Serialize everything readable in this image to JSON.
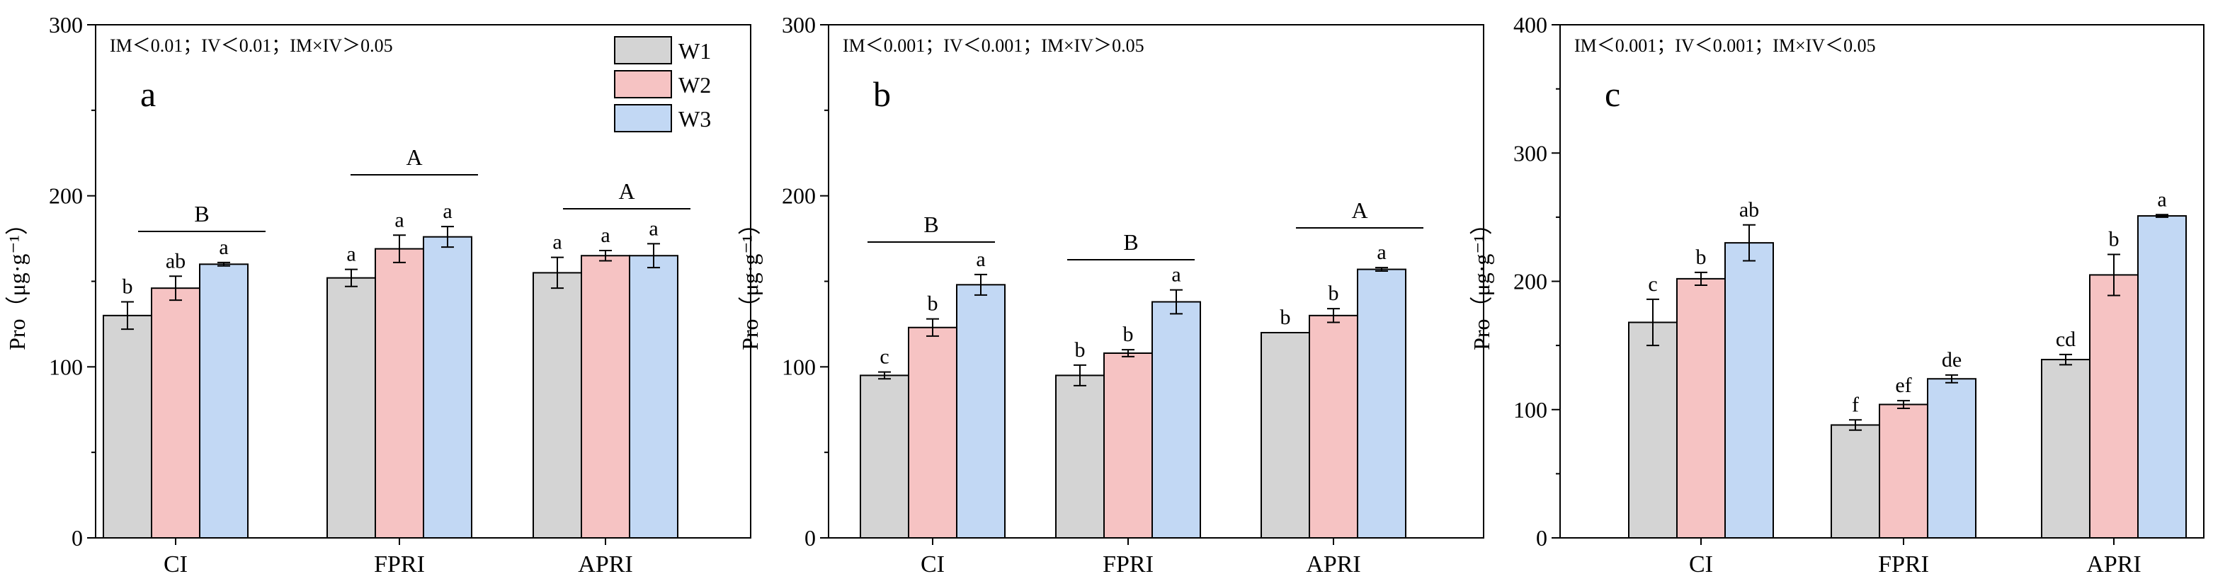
{
  "chart_data": [
    {
      "type": "bar",
      "panel": "a",
      "annotation": "IM＜0.01；IV＜0.01；IM×IV＞0.05",
      "ylabel": "Pro（μg·g⁻¹）",
      "ylim": [
        0,
        300
      ],
      "yticks": [
        "0",
        "100",
        "200",
        "300"
      ],
      "categories": [
        "CI",
        "FPRI",
        "APRI"
      ],
      "series": [
        {
          "name": "W1",
          "values": [
            130,
            152,
            155
          ],
          "errors": [
            8,
            5,
            9
          ],
          "letters": [
            "b",
            "a",
            "a"
          ]
        },
        {
          "name": "W2",
          "values": [
            146,
            169,
            165
          ],
          "errors": [
            7,
            8,
            3
          ],
          "letters": [
            "ab",
            "a",
            "a"
          ]
        },
        {
          "name": "W3",
          "values": [
            160,
            176,
            165
          ],
          "errors": [
            1,
            6,
            7
          ],
          "letters": [
            "a",
            "a",
            "a"
          ]
        }
      ],
      "group_letters": [
        "B",
        "A",
        "A"
      ],
      "legend": [
        "W1",
        "W2",
        "W3"
      ]
    },
    {
      "type": "bar",
      "panel": "b",
      "annotation": "IM＜0.001；IV＜0.001；IM×IV＞0.05",
      "ylabel": "Pro（μg·g⁻¹）",
      "ylim": [
        0,
        300
      ],
      "yticks": [
        "0",
        "100",
        "200",
        "300"
      ],
      "categories": [
        "CI",
        "FPRI",
        "APRI"
      ],
      "series": [
        {
          "name": "W1",
          "values": [
            95,
            95,
            120
          ],
          "errors": [
            2,
            6,
            0
          ],
          "letters": [
            "c",
            "b",
            "b"
          ]
        },
        {
          "name": "W2",
          "values": [
            123,
            108,
            130
          ],
          "errors": [
            5,
            2,
            4
          ],
          "letters": [
            "b",
            "b",
            "b"
          ]
        },
        {
          "name": "W3",
          "values": [
            148,
            138,
            157
          ],
          "errors": [
            6,
            7,
            1
          ],
          "letters": [
            "a",
            "a",
            "a"
          ]
        }
      ],
      "group_letters": [
        "B",
        "B",
        "A"
      ]
    },
    {
      "type": "bar",
      "panel": "c",
      "annotation": "IM＜0.001；IV＜0.001；IM×IV＜0.05",
      "ylabel": "Pro（μg·g⁻¹）",
      "ylim": [
        0,
        400
      ],
      "yticks": [
        "0",
        "100",
        "200",
        "300",
        "400"
      ],
      "categories": [
        "CI",
        "FPRI",
        "APRI"
      ],
      "series": [
        {
          "name": "W1",
          "values": [
            168,
            88,
            139
          ],
          "errors": [
            18,
            4,
            4
          ],
          "letters": [
            "c",
            "f",
            "cd"
          ]
        },
        {
          "name": "W2",
          "values": [
            202,
            104,
            205
          ],
          "errors": [
            5,
            3,
            16
          ],
          "letters": [
            "b",
            "ef",
            "b"
          ]
        },
        {
          "name": "W3",
          "values": [
            230,
            124,
            251
          ],
          "errors": [
            14,
            3,
            1
          ],
          "letters": [
            "ab",
            "de",
            "a"
          ]
        }
      ]
    }
  ],
  "colors": {
    "W1": "#d4d4d4",
    "W2": "#f6c3c3",
    "W3": "#c2d8f4",
    "axis": "#000000"
  }
}
